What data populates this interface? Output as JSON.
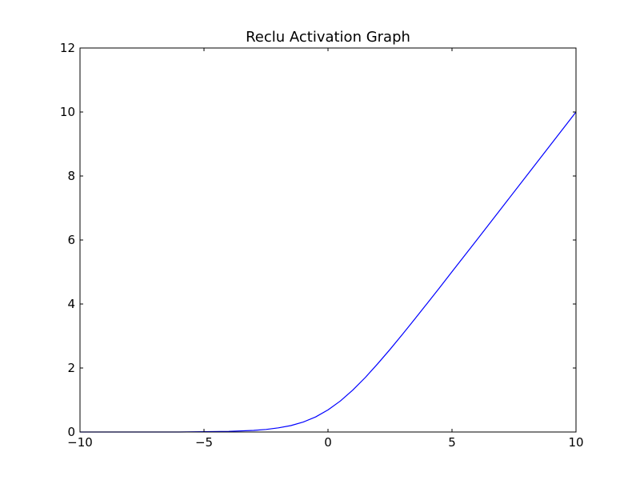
{
  "chart_data": {
    "type": "line",
    "title": "Reclu Activation Graph",
    "xlabel": "",
    "ylabel": "",
    "xlim": [
      -10,
      10
    ],
    "ylim": [
      0,
      12
    ],
    "x_ticks": [
      -10,
      -5,
      0,
      5,
      10
    ],
    "x_tick_labels": [
      "−10",
      "−5",
      "0",
      "5",
      "10"
    ],
    "y_ticks": [
      0,
      2,
      4,
      6,
      8,
      10,
      12
    ],
    "y_tick_labels": [
      "0",
      "2",
      "4",
      "6",
      "8",
      "10",
      "12"
    ],
    "grid": false,
    "legend": "none",
    "series": [
      {
        "color": "#0000ff",
        "x": [
          -10,
          -9,
          -8,
          -7,
          -6,
          -5,
          -4,
          -3,
          -2.5,
          -2,
          -1.5,
          -1,
          -0.5,
          0,
          0.5,
          1,
          1.5,
          2,
          2.5,
          3,
          3.5,
          4,
          4.5,
          5,
          6,
          7,
          8,
          9,
          10
        ],
        "y": [
          0.0,
          0.0,
          0.0,
          0.0,
          0.0,
          0.01,
          0.02,
          0.05,
          0.08,
          0.13,
          0.2,
          0.31,
          0.47,
          0.69,
          0.97,
          1.31,
          1.7,
          2.13,
          2.58,
          3.05,
          3.53,
          4.02,
          4.51,
          5.01,
          6.0,
          7.0,
          8.0,
          9.0,
          10.0
        ]
      }
    ]
  }
}
